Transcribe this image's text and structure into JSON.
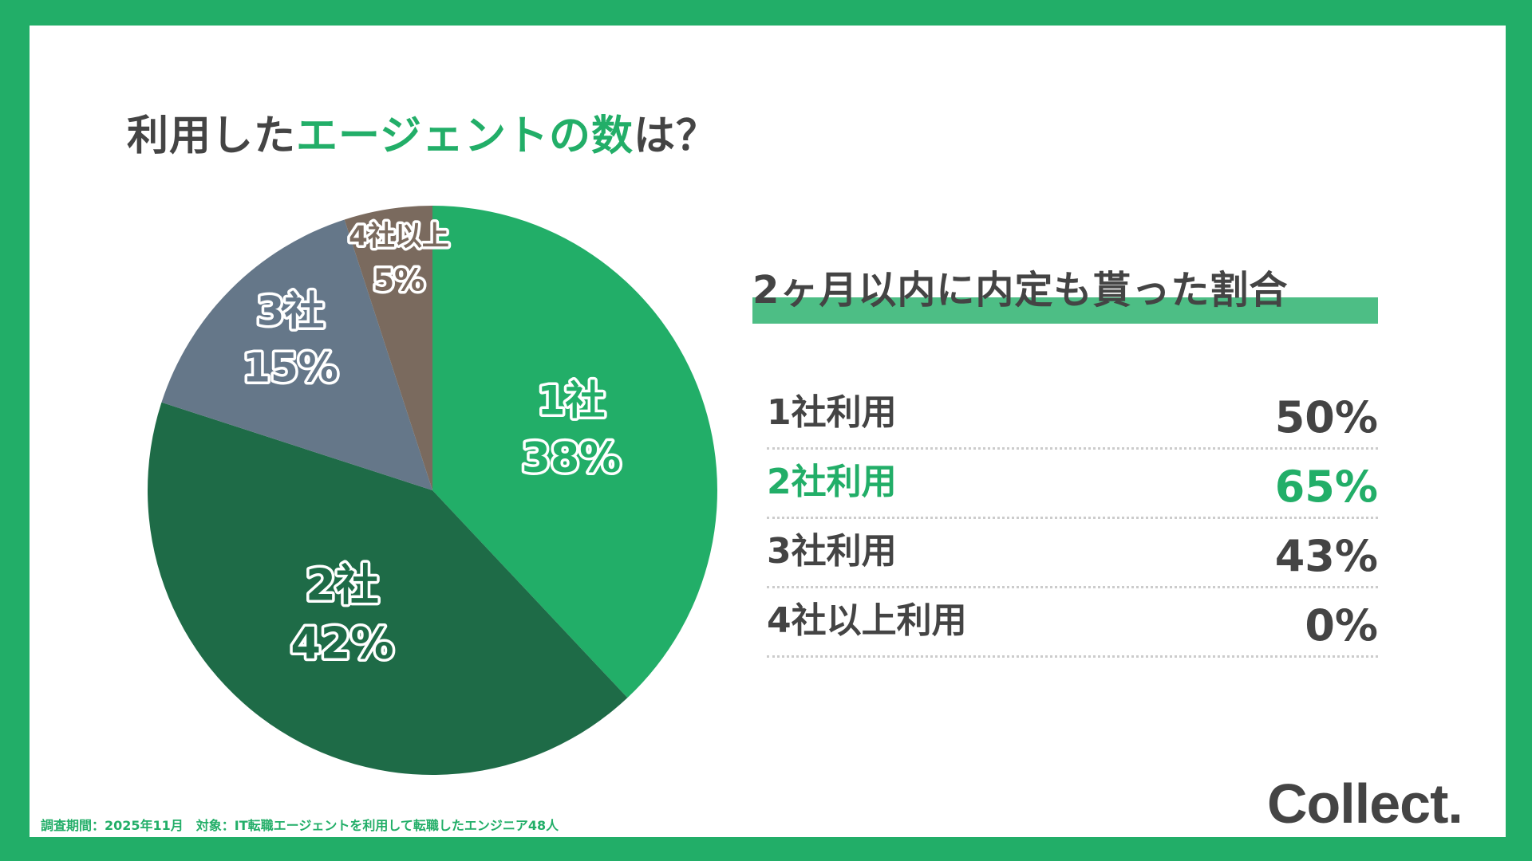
{
  "title": {
    "prefix": "利用した",
    "highlight": "エージェントの数",
    "suffix": "は？"
  },
  "chart_data": {
    "type": "pie",
    "start": "top",
    "direction": "clockwise",
    "slices": [
      {
        "name": "1社",
        "value": 38,
        "label": "38%",
        "color": "#22AE68"
      },
      {
        "name": "2社",
        "value": 42,
        "label": "42%",
        "color": "#1E6B47"
      },
      {
        "name": "3社",
        "value": 15,
        "label": "15%",
        "color": "#657789"
      },
      {
        "name": "4社以上",
        "value": 5,
        "label": "5%",
        "color": "#7A6A5E"
      }
    ]
  },
  "side": {
    "title": "2ヶ月以内に内定も貰った割合",
    "rows": [
      {
        "label": "1社利用",
        "value": "50%",
        "highlight": false
      },
      {
        "label": "2社利用",
        "value": "65%",
        "highlight": true
      },
      {
        "label": "3社利用",
        "value": "43%",
        "highlight": false
      },
      {
        "label": "4社以上利用",
        "value": "0%",
        "highlight": false
      }
    ]
  },
  "footer": "調査期間：2025年11月　対象：IT転職エージェントを利用して転職したエンジニア48人",
  "logo": "Collect.",
  "colors": {
    "accent": "#22AE68",
    "text": "#444444"
  }
}
